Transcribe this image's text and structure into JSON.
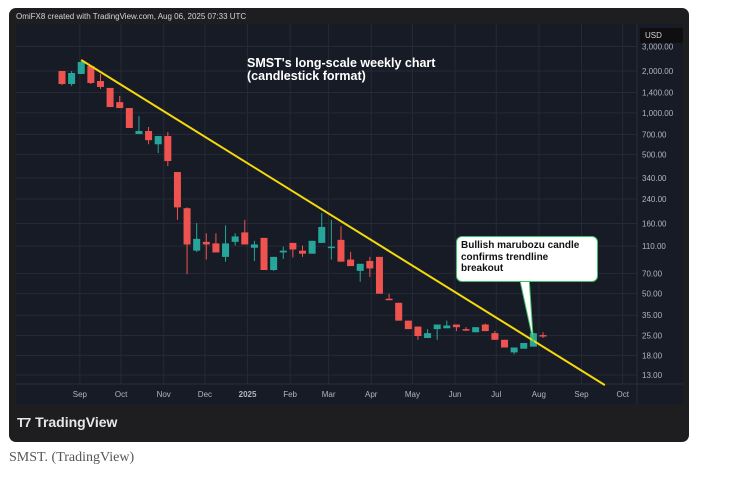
{
  "header": {
    "credit": "OmiFX8 created with TradingView.com, Aug 06, 2025 07:33 UTC"
  },
  "footer": {
    "logo_text": "TradingView",
    "caption": "SMST. (TradingView)"
  },
  "colors": {
    "up": "#26a69a",
    "down": "#ef5350",
    "trendline": "#f5d90a",
    "background": "#171b26",
    "grid": "#252a36"
  },
  "chart_data": {
    "type": "candlestick",
    "title": "SMST's long-scale weekly chart (candlestick format)",
    "title_lines": [
      "SMST's long-scale weekly chart",
      "(candlestick format)"
    ],
    "currency": "USD",
    "yscale": "log",
    "ylim": [
      11,
      2600
    ],
    "y_ticks": [
      "3,000.00",
      "2,000.00",
      "1,400.00",
      "1,000.00",
      "700.00",
      "500.00",
      "340.00",
      "240.00",
      "160.00",
      "110.00",
      "70.00",
      "50.00",
      "35.00",
      "25.00",
      "18.00",
      "13.00"
    ],
    "y_tick_values": [
      3000,
      2000,
      1400,
      1000,
      700,
      500,
      340,
      240,
      160,
      110,
      70,
      50,
      35,
      25,
      18,
      13
    ],
    "x_ticks": [
      {
        "label": "Sep",
        "date": "2024-09-01"
      },
      {
        "label": "Oct",
        "date": "2024-10-01"
      },
      {
        "label": "Nov",
        "date": "2024-11-01"
      },
      {
        "label": "Dec",
        "date": "2024-12-01"
      },
      {
        "label": "2025",
        "date": "2025-01-01",
        "bold": true
      },
      {
        "label": "Feb",
        "date": "2025-02-01"
      },
      {
        "label": "Mar",
        "date": "2025-03-01"
      },
      {
        "label": "Apr",
        "date": "2025-04-01"
      },
      {
        "label": "May",
        "date": "2025-05-01"
      },
      {
        "label": "Jun",
        "date": "2025-06-01"
      },
      {
        "label": "Jul",
        "date": "2025-07-01"
      },
      {
        "label": "Aug",
        "date": "2025-08-01"
      },
      {
        "label": "Sep",
        "date": "2025-09-01"
      },
      {
        "label": "Oct",
        "date": "2025-10-01"
      }
    ],
    "first_week": "2024-08-19",
    "interval": "1W",
    "ohlc": [
      [
        2000,
        2000,
        1587,
        1613
      ],
      [
        1613,
        2000,
        1561,
        1935
      ],
      [
        1904,
        2400,
        1904,
        2322
      ],
      [
        2172,
        2172,
        1613,
        1640
      ],
      [
        1694,
        1904,
        1487,
        1536
      ],
      [
        1511,
        1511,
        1101,
        1101
      ],
      [
        1194,
        1322,
        1083,
        1083
      ],
      [
        1083,
        1083,
        778,
        778
      ],
      [
        704,
        948,
        704,
        740
      ],
      [
        740,
        791,
        594,
        636
      ],
      [
        594,
        681,
        514,
        681
      ],
      [
        681,
        728,
        414,
        450
      ],
      [
        375,
        375,
        170,
        209
      ],
      [
        206,
        209,
        69,
        113
      ],
      [
        102,
        161,
        100,
        124
      ],
      [
        118,
        136,
        88,
        113
      ],
      [
        115,
        136,
        99,
        99
      ],
      [
        92,
        155,
        85,
        115
      ],
      [
        118,
        136,
        111,
        129
      ],
      [
        138,
        170,
        113,
        113
      ],
      [
        107,
        120,
        86,
        113
      ],
      [
        126,
        126,
        74,
        74
      ],
      [
        74,
        92,
        73,
        92
      ],
      [
        99,
        109,
        89,
        102
      ],
      [
        116,
        116,
        91,
        104
      ],
      [
        102,
        111,
        92,
        97
      ],
      [
        97,
        120,
        97,
        120
      ],
      [
        116,
        190,
        116,
        151
      ],
      [
        107,
        170,
        88,
        109
      ],
      [
        122,
        153,
        85,
        85
      ],
      [
        88,
        100,
        79,
        79
      ],
      [
        73,
        82,
        61,
        82
      ],
      [
        86,
        92,
        66,
        76
      ],
      [
        92,
        92,
        50,
        50
      ],
      [
        46,
        50,
        45,
        45
      ],
      [
        43,
        43,
        32,
        32
      ],
      [
        32,
        32,
        27.8,
        27.8
      ],
      [
        29,
        29,
        23.3,
        24.8
      ],
      [
        24,
        27.8,
        24,
        26
      ],
      [
        27.8,
        30,
        23.3,
        30
      ],
      [
        28.2,
        32,
        28.2,
        29.5
      ],
      [
        30,
        30,
        26.9,
        28.7
      ],
      [
        27.8,
        28.7,
        26.9,
        27.3
      ],
      [
        26.4,
        28.7,
        26.4,
        28.7
      ],
      [
        30,
        30.5,
        26.9,
        26.9
      ],
      [
        26,
        27,
        23.3,
        23.3
      ],
      [
        23.3,
        23.3,
        20.5,
        20.5
      ],
      [
        18.9,
        20.5,
        18.3,
        20.5
      ],
      [
        20.1,
        22.1,
        20.1,
        22.1
      ],
      [
        20.8,
        26,
        20.8,
        26
      ],
      [
        25.2,
        26.4,
        24,
        24.8
      ]
    ],
    "trendline": [
      {
        "date": "2024-09-02",
        "price": 2400
      },
      {
        "date": "2025-09-18",
        "price": 11
      }
    ],
    "annotation": {
      "text": "Bullish marubozu candle confirms trendline breakout",
      "target_date": "2025-07-28",
      "target_price": 21
    }
  }
}
